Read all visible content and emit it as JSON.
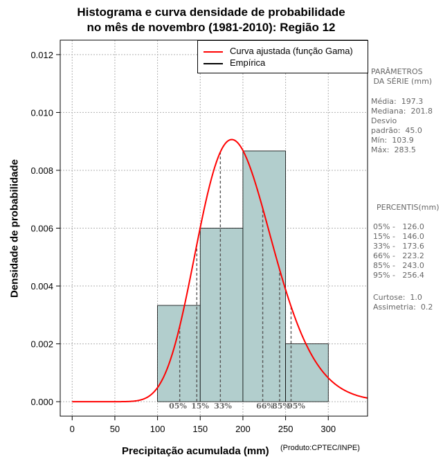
{
  "chart_data": {
    "type": "histogram",
    "title": "Histograma e curva densidade de probabilidade",
    "subtitle": "no mês de novembro (1981-2010): Região 12",
    "xlabel": "Precipitação acumulada (mm)",
    "ylabel": "Densidade de probabilidade",
    "credit": "(Produto:CPTEC/INPE)",
    "xlim": [
      -14,
      346
    ],
    "ylim": [
      -0.0005,
      0.0125
    ],
    "xticks": [
      0,
      50,
      100,
      150,
      200,
      250,
      300
    ],
    "yticks": [
      0.0,
      0.002,
      0.004,
      0.006,
      0.008,
      0.01,
      0.012
    ],
    "ytick_labels": [
      "0.000",
      "0.002",
      "0.004",
      "0.006",
      "0.008",
      "0.010",
      "0.012"
    ],
    "bins": [
      {
        "start": 100,
        "end": 150,
        "density": 0.00333
      },
      {
        "start": 150,
        "end": 200,
        "density": 0.006
      },
      {
        "start": 200,
        "end": 250,
        "density": 0.00867
      },
      {
        "start": 250,
        "end": 300,
        "density": 0.002
      }
    ],
    "gamma_fit": {
      "shape": 19.2,
      "scale": 10.27
    },
    "percentiles": [
      {
        "label": "05%",
        "value": 126.0
      },
      {
        "label": "15%",
        "value": 146.0
      },
      {
        "label": "33%",
        "value": 173.6
      },
      {
        "label": "66%",
        "value": 223.2
      },
      {
        "label": "85%",
        "value": 243.0
      },
      {
        "label": "95%",
        "value": 256.4
      }
    ],
    "legend": [
      {
        "label": "Curva ajustada (função Gama)",
        "color": "#ff0000"
      },
      {
        "label": "Empírica",
        "color": "#000000"
      }
    ],
    "colors": {
      "bar_fill": "#b2cecd",
      "curve": "#ff0000",
      "grid": "#b0b0b0",
      "side_text": "#666666"
    }
  },
  "side_panel": {
    "params_title": "PARÂMETROS\n DA SÉRIE (mm)",
    "params": "Média:  197.3\nMediana:  201.8\nDesvio\npadrão:  45.0\nMín:  103.9\nMáx:  283.5",
    "percentis_title": "PERCENTIS(mm)",
    "percentis": "05% -   126.0\n15% -   146.0\n33% -   173.6\n66% -   223.2\n85% -   243.0\n95% -   256.4",
    "stats": "Curtose:  1.0\nAssimetria:  0.2"
  }
}
